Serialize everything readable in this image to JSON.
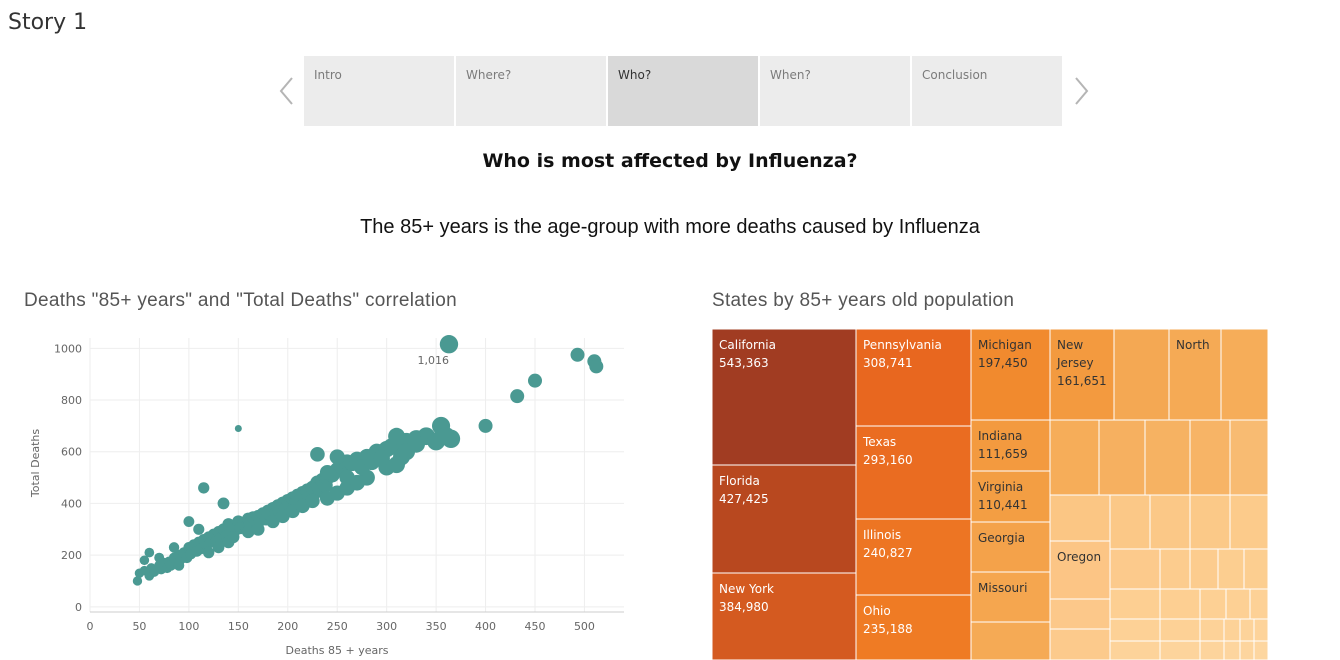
{
  "story": {
    "title": "Story 1"
  },
  "tabs": [
    {
      "label": "Intro",
      "active": false
    },
    {
      "label": "Where?",
      "active": false
    },
    {
      "label": "Who?",
      "active": true
    },
    {
      "label": "When?",
      "active": false
    },
    {
      "label": "Conclusion",
      "active": false
    }
  ],
  "heading": "Who is most affected by Influenza?",
  "subheading": "The 85+ years is the age-group with more deaths caused by Influenza",
  "scatter": {
    "title": "Deaths \"85+ years\" and \"Total Deaths\" correlation",
    "color": "#4a9992",
    "annotation": "1,016"
  },
  "treemap": {
    "title": "States by 85+ years old population"
  },
  "chart_data": [
    {
      "type": "scatter",
      "title": "Deaths \"85+ years\" and \"Total Deaths\" correlation",
      "xlabel": "Deaths 85 + years",
      "ylabel": "Total Deaths",
      "xlim": [
        0,
        540
      ],
      "ylim": [
        -20,
        1040
      ],
      "x_ticks": [
        0,
        50,
        100,
        150,
        200,
        250,
        300,
        350,
        400,
        450,
        500
      ],
      "y_ticks": [
        0,
        200,
        400,
        600,
        800,
        1000
      ],
      "grid": true,
      "annotation": {
        "x": 363,
        "y": 1016,
        "text": "1,016"
      },
      "points": [
        [
          48,
          100
        ],
        [
          50,
          130
        ],
        [
          55,
          140
        ],
        [
          60,
          120
        ],
        [
          62,
          150
        ],
        [
          65,
          135
        ],
        [
          70,
          160
        ],
        [
          72,
          145
        ],
        [
          75,
          170
        ],
        [
          78,
          150
        ],
        [
          80,
          175
        ],
        [
          82,
          160
        ],
        [
          85,
          190
        ],
        [
          88,
          170
        ],
        [
          90,
          200
        ],
        [
          92,
          185
        ],
        [
          95,
          210
        ],
        [
          98,
          190
        ],
        [
          100,
          230
        ],
        [
          102,
          205
        ],
        [
          105,
          240
        ],
        [
          108,
          215
        ],
        [
          110,
          250
        ],
        [
          112,
          225
        ],
        [
          115,
          260
        ],
        [
          118,
          240
        ],
        [
          120,
          270
        ],
        [
          122,
          250
        ],
        [
          125,
          280
        ],
        [
          128,
          255
        ],
        [
          130,
          290
        ],
        [
          132,
          265
        ],
        [
          135,
          300
        ],
        [
          138,
          275
        ],
        [
          140,
          320
        ],
        [
          142,
          290
        ],
        [
          145,
          310
        ],
        [
          148,
          300
        ],
        [
          150,
          330
        ],
        [
          152,
          305
        ],
        [
          155,
          320
        ],
        [
          158,
          310
        ],
        [
          160,
          340
        ],
        [
          162,
          325
        ],
        [
          165,
          345
        ],
        [
          168,
          330
        ],
        [
          170,
          350
        ],
        [
          172,
          335
        ],
        [
          175,
          360
        ],
        [
          178,
          340
        ],
        [
          180,
          370
        ],
        [
          182,
          355
        ],
        [
          185,
          380
        ],
        [
          188,
          360
        ],
        [
          190,
          390
        ],
        [
          192,
          370
        ],
        [
          195,
          400
        ],
        [
          198,
          380
        ],
        [
          200,
          410
        ],
        [
          202,
          395
        ],
        [
          205,
          420
        ],
        [
          208,
          400
        ],
        [
          210,
          430
        ],
        [
          212,
          410
        ],
        [
          215,
          440
        ],
        [
          218,
          420
        ],
        [
          220,
          450
        ],
        [
          222,
          430
        ],
        [
          225,
          460
        ],
        [
          228,
          445
        ],
        [
          230,
          480
        ],
        [
          232,
          460
        ],
        [
          235,
          490
        ],
        [
          238,
          470
        ],
        [
          240,
          500
        ],
        [
          245,
          510
        ],
        [
          250,
          530
        ],
        [
          255,
          540
        ],
        [
          260,
          560
        ],
        [
          265,
          555
        ],
        [
          270,
          570
        ],
        [
          280,
          580
        ],
        [
          290,
          600
        ],
        [
          300,
          610
        ],
        [
          305,
          620
        ],
        [
          310,
          660
        ],
        [
          315,
          580
        ],
        [
          320,
          640
        ],
        [
          330,
          650
        ],
        [
          340,
          660
        ],
        [
          350,
          640
        ],
        [
          355,
          700
        ],
        [
          360,
          660
        ],
        [
          365,
          650
        ],
        [
          400,
          700
        ],
        [
          432,
          815
        ],
        [
          450,
          875
        ],
        [
          493,
          975
        ],
        [
          510,
          950
        ],
        [
          512,
          930
        ],
        [
          363,
          1016
        ],
        [
          150,
          690
        ],
        [
          115,
          460
        ],
        [
          135,
          400
        ],
        [
          100,
          330
        ],
        [
          60,
          210
        ],
        [
          55,
          180
        ],
        [
          70,
          190
        ],
        [
          85,
          230
        ],
        [
          90,
          160
        ],
        [
          110,
          300
        ],
        [
          120,
          210
        ],
        [
          130,
          230
        ],
        [
          140,
          250
        ],
        [
          145,
          270
        ],
        [
          160,
          290
        ],
        [
          170,
          300
        ],
        [
          185,
          330
        ],
        [
          195,
          350
        ],
        [
          205,
          370
        ],
        [
          215,
          390
        ],
        [
          225,
          410
        ],
        [
          240,
          420
        ],
        [
          250,
          440
        ],
        [
          260,
          460
        ],
        [
          270,
          480
        ],
        [
          280,
          500
        ],
        [
          300,
          540
        ],
        [
          310,
          550
        ],
        [
          260,
          500
        ],
        [
          230,
          590
        ],
        [
          240,
          520
        ],
        [
          250,
          580
        ],
        [
          275,
          540
        ],
        [
          285,
          560
        ],
        [
          295,
          575
        ],
        [
          320,
          600
        ],
        [
          330,
          630
        ]
      ]
    },
    {
      "type": "treemap",
      "title": "States by 85+ years old population",
      "items": [
        {
          "label": "California",
          "value": "543,363"
        },
        {
          "label": "Florida",
          "value": "427,425"
        },
        {
          "label": "New York",
          "value": "384,980"
        },
        {
          "label": "Pennsylvania",
          "value": "308,741"
        },
        {
          "label": "Texas",
          "value": "293,160"
        },
        {
          "label": "Illinois",
          "value": "240,827"
        },
        {
          "label": "Ohio",
          "value": "235,188"
        },
        {
          "label": "Michigan",
          "value": "197,450"
        },
        {
          "label": "Indiana",
          "value": "111,659"
        },
        {
          "label": "Virginia",
          "value": "110,441"
        },
        {
          "label": "Georgia",
          "value": ""
        },
        {
          "label": "Missouri",
          "value": ""
        },
        {
          "label": "New Jersey",
          "value": "161,651"
        },
        {
          "label": "North",
          "value": ""
        },
        {
          "label": "Oregon",
          "value": ""
        }
      ]
    }
  ]
}
